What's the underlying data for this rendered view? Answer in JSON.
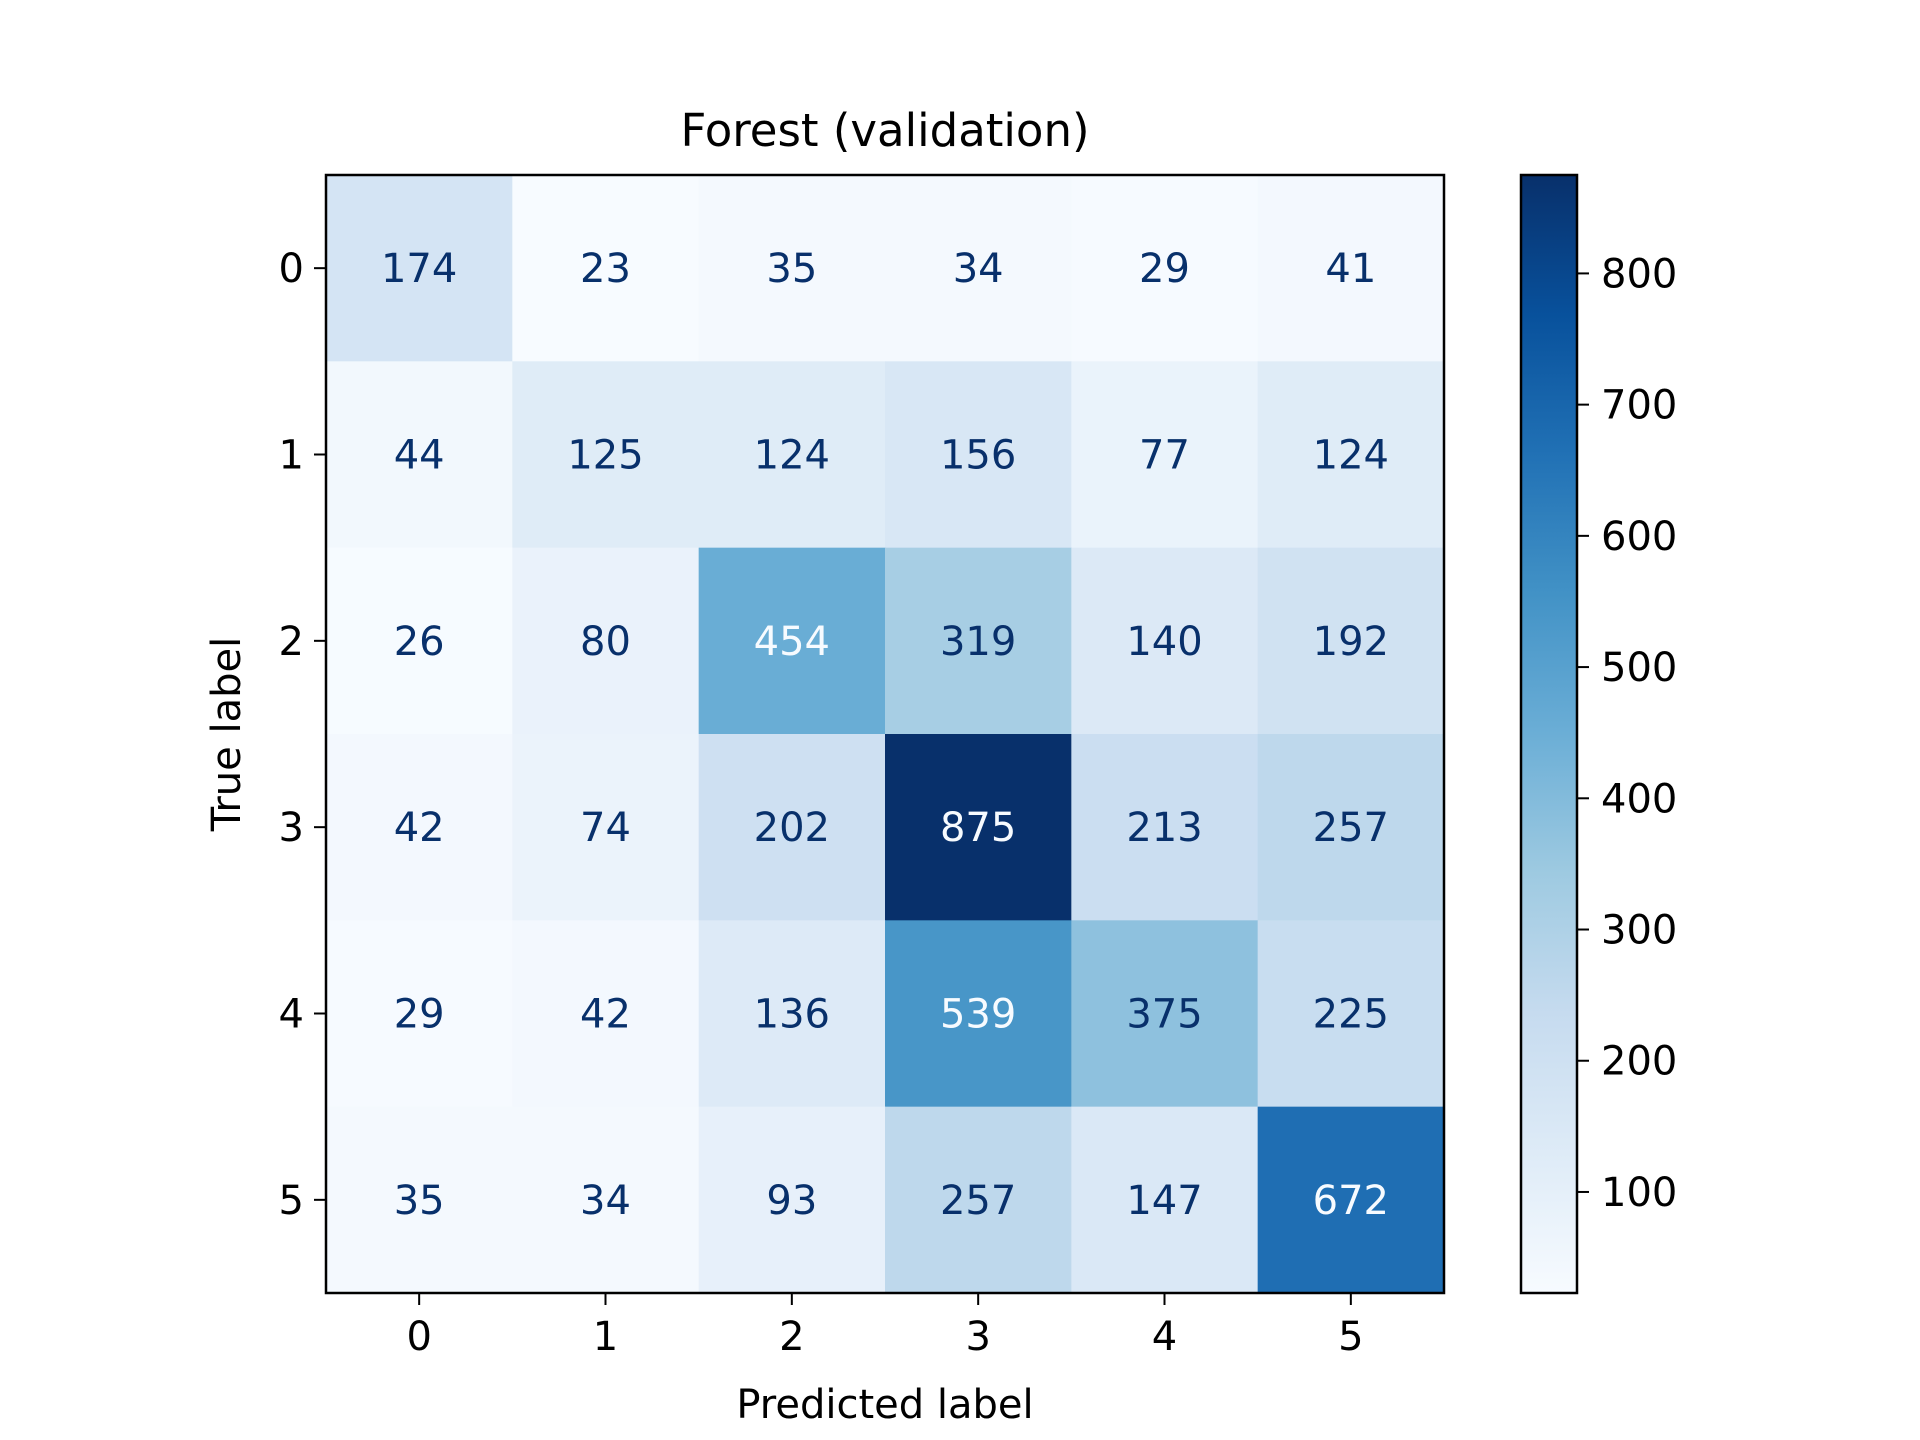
{
  "chart_data": {
    "type": "heatmap",
    "title": "Forest (validation)",
    "xlabel": "Predicted label",
    "ylabel": "True label",
    "x_categories": [
      "0",
      "1",
      "2",
      "3",
      "4",
      "5"
    ],
    "y_categories": [
      "0",
      "1",
      "2",
      "3",
      "4",
      "5"
    ],
    "values": [
      [
        174,
        23,
        35,
        34,
        29,
        41
      ],
      [
        44,
        125,
        124,
        156,
        77,
        124
      ],
      [
        26,
        80,
        454,
        319,
        140,
        192
      ],
      [
        42,
        74,
        202,
        875,
        213,
        257
      ],
      [
        29,
        42,
        136,
        539,
        375,
        225
      ],
      [
        35,
        34,
        93,
        257,
        147,
        672
      ]
    ],
    "colormap": "Blues",
    "colorbar_ticks": [
      "100",
      "200",
      "300",
      "400",
      "500",
      "600",
      "700",
      "800"
    ],
    "colorbar_range": [
      23,
      875
    ],
    "grid": false,
    "legend": "colorbar-right"
  }
}
